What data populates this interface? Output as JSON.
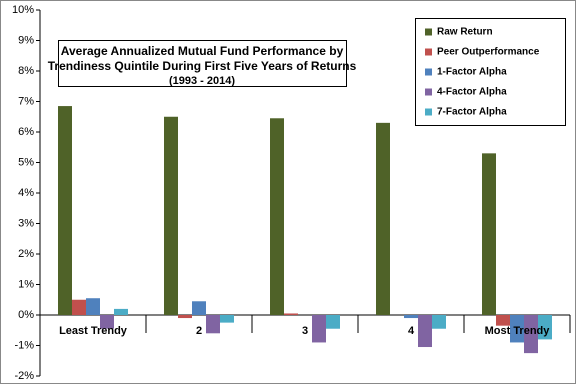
{
  "chart_data": {
    "type": "bar",
    "title": [
      "Average Annualized Mutual Fund Performance by",
      "Trendiness Quintile During First Five Years of Returns"
    ],
    "subtitle": "(1993 - 2014)",
    "categories": [
      "Least Trendy",
      "2",
      "3",
      "4",
      "Most Trendy"
    ],
    "series": [
      {
        "name": "Raw Return",
        "color": "#4f6228",
        "values": [
          6.85,
          6.5,
          6.45,
          6.3,
          5.3
        ]
      },
      {
        "name": "Peer Outperformance",
        "color": "#c0504d",
        "values": [
          0.5,
          -0.1,
          0.05,
          0.0,
          -0.35
        ]
      },
      {
        "name": "1-Factor Alpha",
        "color": "#4f81bd",
        "values": [
          0.55,
          0.45,
          0.0,
          -0.1,
          -0.9
        ]
      },
      {
        "name": "4-Factor Alpha",
        "color": "#8064a2",
        "values": [
          -0.45,
          -0.6,
          -0.9,
          -1.05,
          -1.25
        ]
      },
      {
        "name": "7-Factor Alpha",
        "color": "#4bacc6",
        "values": [
          0.2,
          -0.25,
          -0.45,
          -0.45,
          -0.8
        ]
      }
    ],
    "ylim": [
      -2,
      10
    ],
    "yticks": [
      {
        "value": -2,
        "label": "-2%"
      },
      {
        "value": -1,
        "label": "-1%"
      },
      {
        "value": 0,
        "label": "0%"
      },
      {
        "value": 1,
        "label": "1%"
      },
      {
        "value": 2,
        "label": "2%"
      },
      {
        "value": 3,
        "label": "3%"
      },
      {
        "value": 4,
        "label": "4%"
      },
      {
        "value": 5,
        "label": "5%"
      },
      {
        "value": 6,
        "label": "6%"
      },
      {
        "value": 7,
        "label": "7%"
      },
      {
        "value": 8,
        "label": "8%"
      },
      {
        "value": 9,
        "label": "9%"
      },
      {
        "value": 10,
        "label": "10%"
      }
    ],
    "legend": "top-right"
  }
}
